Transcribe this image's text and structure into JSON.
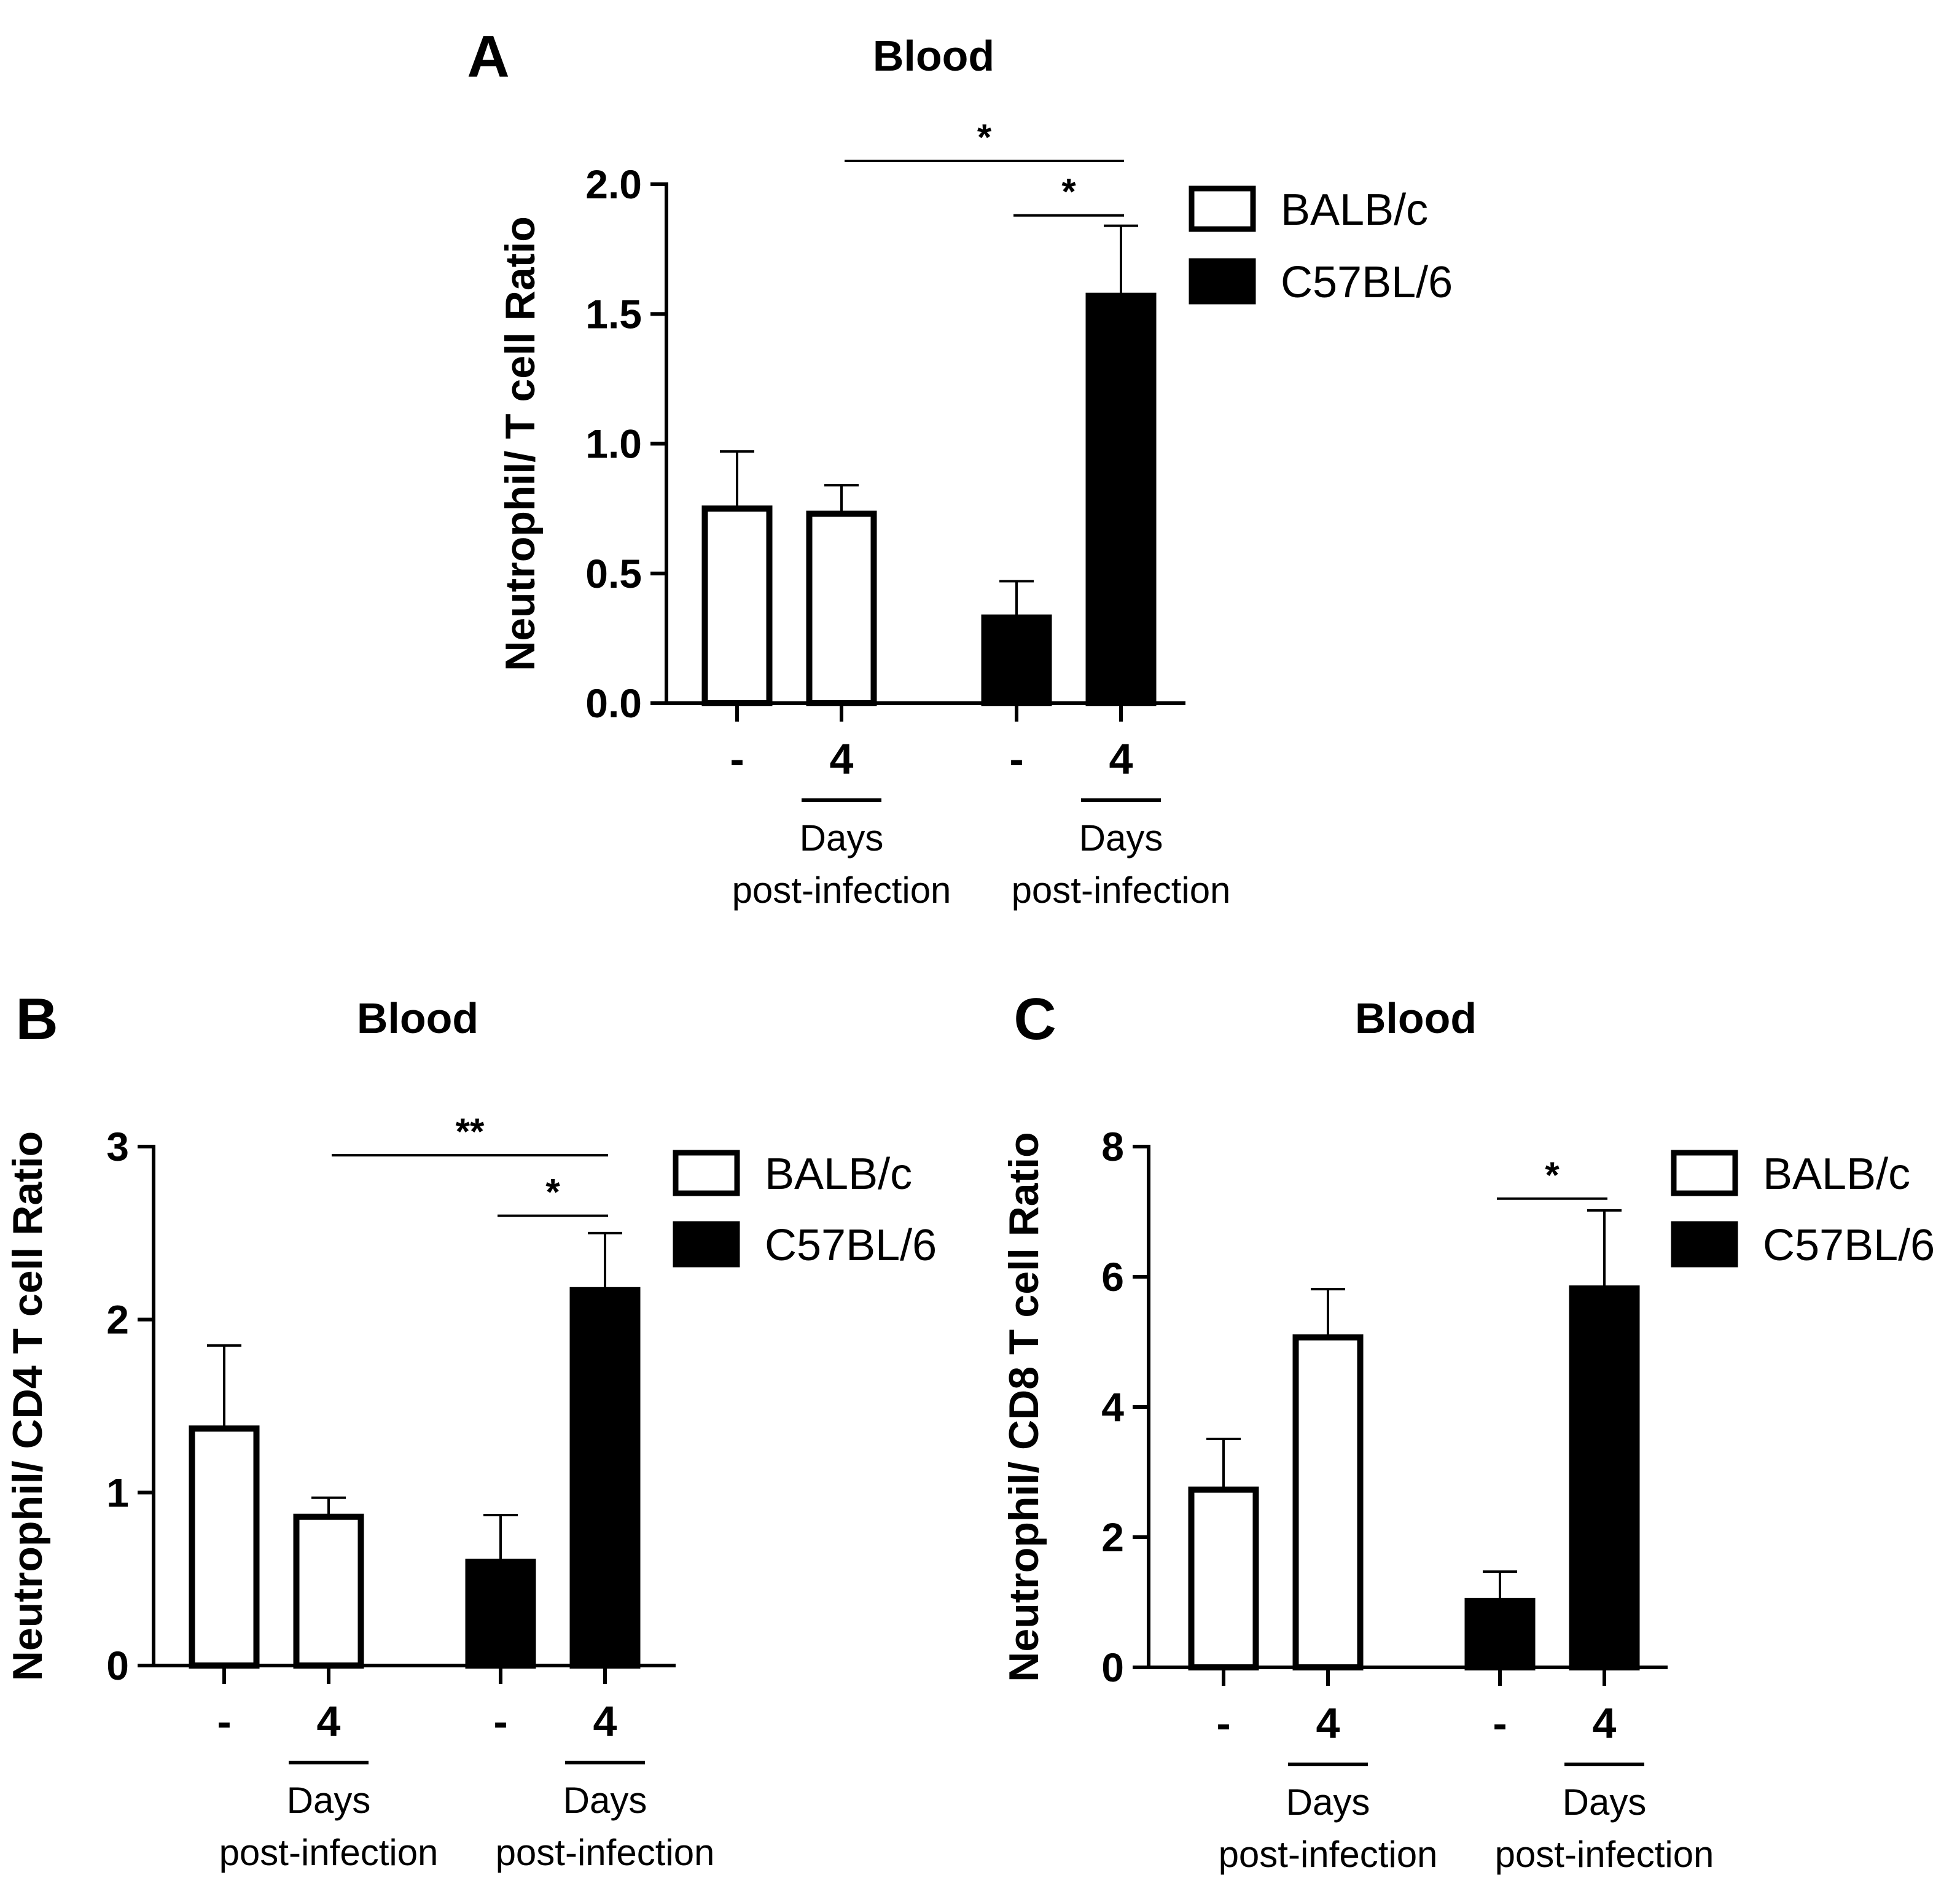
{
  "chart_data": [
    {
      "panel": "A",
      "type": "bar",
      "title": "Blood",
      "ylabel": "Neutrophil/ T cell Ratio",
      "ylim": [
        0,
        2.0
      ],
      "yticks": [
        "0.0",
        "0.5",
        "1.0",
        "1.5",
        "2.0"
      ],
      "ytick_values": [
        0,
        0.5,
        1.0,
        1.5,
        2.0
      ],
      "categories": [
        "-",
        "4",
        "-",
        "4"
      ],
      "group_sublabel": [
        "Days",
        "post-infection"
      ],
      "series": [
        {
          "name": "BALB/c",
          "fill": "#ffffff",
          "values": [
            0.75,
            0.73,
            null,
            null
          ],
          "errors": [
            0.22,
            0.11,
            null,
            null
          ]
        },
        {
          "name": "C57BL/6",
          "fill": "#000000",
          "values": [
            null,
            null,
            0.33,
            1.57
          ],
          "errors": [
            null,
            null,
            0.14,
            0.27
          ]
        }
      ],
      "significance": [
        {
          "from": 1,
          "to": 3,
          "label": "*",
          "y": 2.09
        },
        {
          "from": 2,
          "to": 3,
          "label": "*",
          "y": 1.88
        }
      ],
      "legend": [
        "BALB/c",
        "C57BL/6"
      ]
    },
    {
      "panel": "B",
      "type": "bar",
      "title": "Blood",
      "ylabel": "Neutrophil/ CD4 T cell Ratio",
      "ylim": [
        0,
        3
      ],
      "yticks": [
        "0",
        "1",
        "2",
        "3"
      ],
      "ytick_values": [
        0,
        1,
        2,
        3
      ],
      "categories": [
        "-",
        "4",
        "-",
        "4"
      ],
      "group_sublabel": [
        "Days",
        "post-infection"
      ],
      "series": [
        {
          "name": "BALB/c",
          "fill": "#ffffff",
          "values": [
            1.37,
            0.86,
            null,
            null
          ],
          "errors": [
            0.48,
            0.11,
            null,
            null
          ]
        },
        {
          "name": "C57BL/6",
          "fill": "#000000",
          "values": [
            null,
            null,
            0.6,
            2.17
          ],
          "errors": [
            null,
            null,
            0.27,
            0.33
          ]
        }
      ],
      "significance": [
        {
          "from": 1,
          "to": 3,
          "label": "**",
          "y": 2.95
        },
        {
          "from": 2,
          "to": 3,
          "label": "*",
          "y": 2.6
        }
      ],
      "legend": [
        "BALB/c",
        "C57BL/6"
      ]
    },
    {
      "panel": "C",
      "type": "bar",
      "title": "Blood",
      "ylabel": "Neutrophil/ CD8 T cell Ratio",
      "ylim": [
        0,
        8
      ],
      "yticks": [
        "0",
        "2",
        "4",
        "6",
        "8"
      ],
      "ytick_values": [
        0,
        2,
        4,
        6,
        8
      ],
      "categories": [
        "-",
        "4",
        "-",
        "4"
      ],
      "group_sublabel": [
        "Days",
        "post-infection"
      ],
      "series": [
        {
          "name": "BALB/c",
          "fill": "#ffffff",
          "values": [
            2.73,
            5.07,
            null,
            null
          ],
          "errors": [
            0.78,
            0.74,
            null,
            null
          ]
        },
        {
          "name": "C57BL/6",
          "fill": "#000000",
          "values": [
            null,
            null,
            1.02,
            5.82
          ],
          "errors": [
            null,
            null,
            0.45,
            1.2
          ]
        }
      ],
      "significance": [
        {
          "from": 2,
          "to": 3,
          "label": "*",
          "y": 7.2
        }
      ],
      "legend": [
        "BALB/c",
        "C57BL/6"
      ]
    }
  ]
}
